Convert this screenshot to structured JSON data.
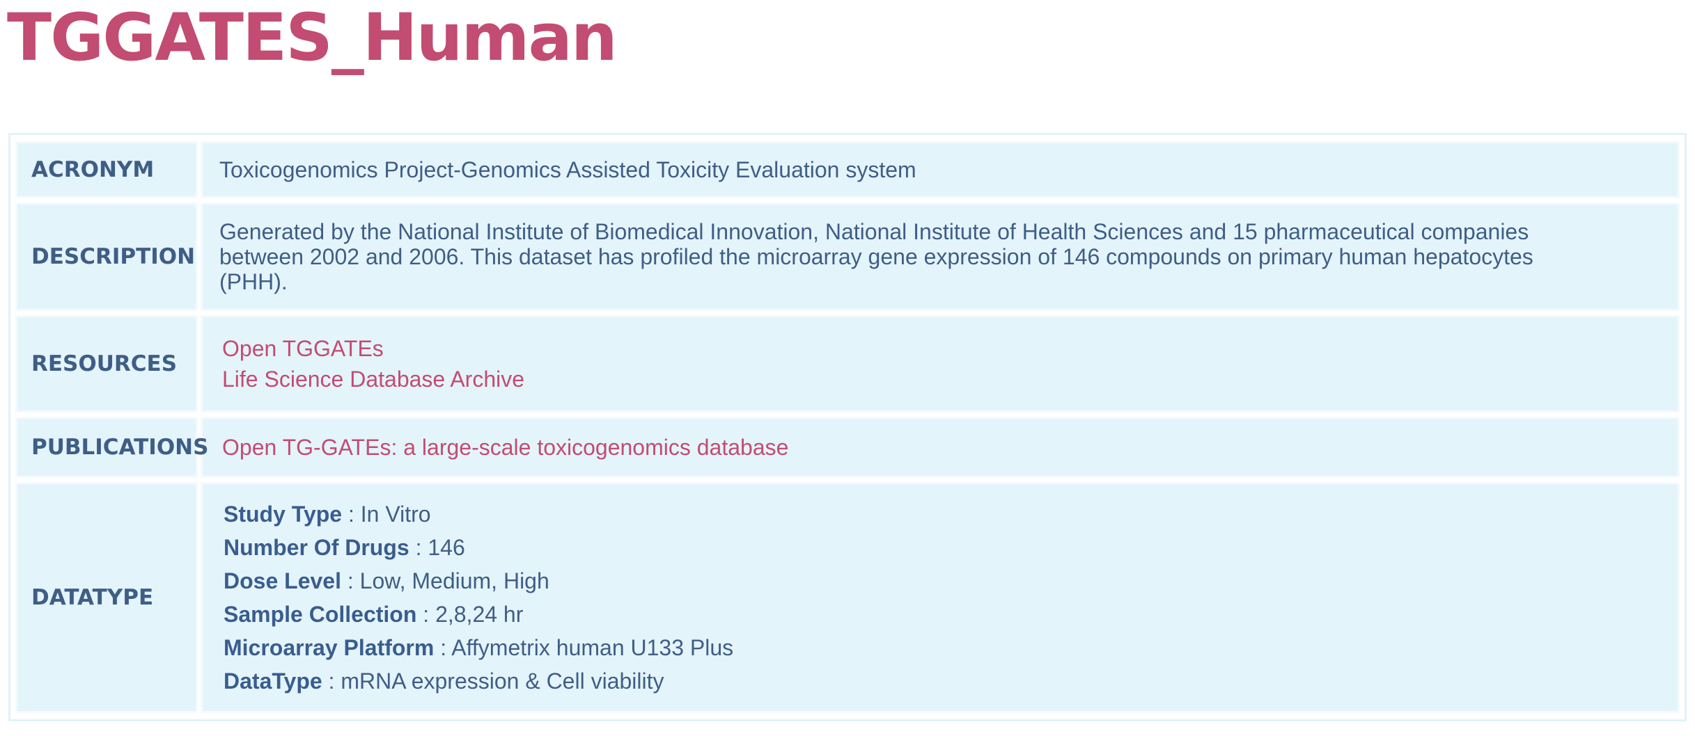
{
  "page_title": "TGGATES_Human",
  "colors": {
    "title": "#c24c72",
    "link": "#c24c72",
    "label": "#3a5d8e",
    "text": "#3f5e86",
    "cell_background": "#e4f4fb"
  },
  "acronym": {
    "label": "ACRONYM",
    "value": "Toxicogenomics Project-Genomics Assisted Toxicity Evaluation system"
  },
  "description": {
    "label": "DESCRIPTION",
    "line1": "Generated by the National Institute of Biomedical Innovation, National Institute of Health Sciences and 15 pharmaceutical companies",
    "line2": "between 2002 and 2006. This dataset has profiled the microarray gene expression of 146 compounds on primary human hepatocytes",
    "line3": "(PHH)."
  },
  "resources": {
    "label": "RESOURCES",
    "links": [
      "Open TGGATEs",
      "Life Science Database Archive"
    ]
  },
  "publications": {
    "label": "PUBLICATIONS",
    "links": [
      "Open TG-GATEs: a large-scale toxicogenomics database"
    ]
  },
  "datatype": {
    "label": "DATATYPE",
    "separator": ":",
    "items": [
      {
        "key": "Study Type",
        "value": "In Vitro"
      },
      {
        "key": "Number Of Drugs",
        "value": "146"
      },
      {
        "key": "Dose Level",
        "value": "Low, Medium, High"
      },
      {
        "key": "Sample Collection",
        "value": "2,8,24 hr"
      },
      {
        "key": "Microarray Platform",
        "value": "Affymetrix human U133 Plus"
      },
      {
        "key": "DataType",
        "value": "mRNA expression & Cell viability"
      }
    ]
  }
}
